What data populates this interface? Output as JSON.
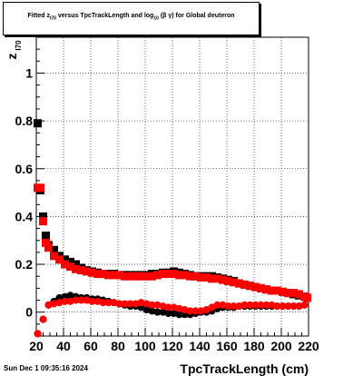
{
  "title": {
    "prefix": "Fitted ",
    "z": "z",
    "z_sub": "I70",
    "middle": " versus TpcTrackLength and log",
    "log_sub": "10",
    "suffix": "(β γ) for Global deuteron"
  },
  "timestamp": "Sun Dec  1 09:35:16 2024",
  "chart_data": {
    "type": "scatter",
    "title": "Fitted zI70 versus TpcTrackLength and log10(β γ) for Global deuteron",
    "xlabel": "TpcTrackLength (cm)",
    "ylabel": "z",
    "ylabel_sub": "I70",
    "xlim": [
      20,
      220
    ],
    "ylim": [
      -0.1,
      1.15
    ],
    "xticks": [
      20,
      40,
      60,
      80,
      100,
      120,
      140,
      160,
      180,
      200,
      220
    ],
    "xtick_labels": [
      "20",
      "40",
      "60",
      "80",
      "100",
      "120",
      "140",
      "160",
      "180",
      "200",
      "220"
    ],
    "yticks": [
      0,
      0.2,
      0.4,
      0.6,
      0.8,
      1
    ],
    "ytick_labels": [
      "0",
      "0.2",
      "0.4",
      "0.6",
      "0.8",
      "1"
    ],
    "grid": true,
    "series": [
      {
        "color": "#000000",
        "marker": "square",
        "x": [
          21,
          23,
          25,
          27,
          29,
          33,
          37,
          41,
          45,
          49,
          53,
          57,
          61,
          65,
          69,
          73,
          77,
          81,
          85,
          89,
          93,
          97,
          101,
          105,
          109,
          113,
          117,
          121,
          125,
          129,
          133,
          137,
          141,
          145,
          149,
          153,
          157,
          161,
          165,
          169,
          173,
          177,
          181,
          185,
          189,
          193,
          197,
          201,
          205,
          209,
          213,
          217,
          219
        ],
        "y": [
          0.79,
          0.51,
          0.4,
          0.32,
          0.28,
          0.26,
          0.235,
          0.22,
          0.21,
          0.2,
          0.185,
          0.175,
          0.17,
          0.165,
          0.16,
          0.16,
          0.16,
          0.155,
          0.155,
          0.155,
          0.155,
          0.155,
          0.155,
          0.16,
          0.16,
          0.165,
          0.165,
          0.17,
          0.165,
          0.16,
          0.155,
          0.15,
          0.15,
          0.15,
          0.15,
          0.145,
          0.14,
          0.135,
          0.13,
          0.12,
          0.115,
          0.11,
          0.105,
          0.1,
          0.095,
          0.09,
          0.09,
          0.085,
          0.08,
          0.075,
          0.07,
          0.065,
          0.06
        ]
      },
      {
        "color": "#ff0000",
        "marker": "square",
        "x": [
          21,
          23,
          25,
          27,
          29,
          33,
          37,
          41,
          45,
          49,
          53,
          57,
          61,
          65,
          69,
          73,
          77,
          81,
          85,
          89,
          93,
          97,
          101,
          105,
          109,
          113,
          117,
          121,
          125,
          129,
          133,
          137,
          141,
          145,
          149,
          153,
          157,
          161,
          165,
          169,
          173,
          177,
          181,
          185,
          189,
          193,
          197,
          201,
          205,
          209,
          213,
          217,
          219
        ],
        "y": [
          0.52,
          0.52,
          0.38,
          0.29,
          0.27,
          0.235,
          0.22,
          0.2,
          0.19,
          0.18,
          0.175,
          0.17,
          0.165,
          0.16,
          0.16,
          0.155,
          0.155,
          0.155,
          0.15,
          0.15,
          0.15,
          0.15,
          0.15,
          0.15,
          0.155,
          0.16,
          0.16,
          0.16,
          0.155,
          0.155,
          0.15,
          0.15,
          0.145,
          0.145,
          0.14,
          0.14,
          0.135,
          0.13,
          0.125,
          0.12,
          0.115,
          0.11,
          0.105,
          0.1,
          0.095,
          0.09,
          0.09,
          0.085,
          0.08,
          0.08,
          0.075,
          0.065,
          0.06
        ]
      },
      {
        "color": "#000000",
        "marker": "circle",
        "x": [
          21,
          25,
          29,
          33,
          37,
          41,
          45,
          49,
          53,
          57,
          61,
          65,
          69,
          73,
          77,
          81,
          85,
          89,
          93,
          97,
          101,
          105,
          109,
          113,
          117,
          121,
          125,
          129,
          133,
          137,
          141,
          145,
          149,
          153,
          157,
          161,
          165,
          169,
          173,
          177,
          181,
          185,
          189,
          193,
          197,
          201,
          205,
          209,
          213,
          217
        ],
        "y": [
          -0.09,
          -0.03,
          0.03,
          0.045,
          0.06,
          0.065,
          0.07,
          0.065,
          0.06,
          0.06,
          0.055,
          0.055,
          0.05,
          0.045,
          0.04,
          0.035,
          0.03,
          0.025,
          0.025,
          0.02,
          0.01,
          0.005,
          0.0,
          0.0,
          -0.005,
          -0.005,
          -0.01,
          -0.01,
          -0.01,
          -0.005,
          0.0,
          0.0,
          0.005,
          0.015,
          0.02,
          0.02,
          0.02,
          0.025,
          0.025,
          0.025,
          0.025,
          0.025,
          0.025,
          0.025,
          0.025,
          0.025,
          0.025,
          0.025,
          0.025,
          0.03
        ]
      },
      {
        "color": "#ff0000",
        "marker": "circle",
        "x": [
          21,
          25,
          29,
          33,
          37,
          41,
          45,
          49,
          53,
          57,
          61,
          65,
          69,
          73,
          77,
          81,
          85,
          89,
          93,
          97,
          101,
          105,
          109,
          113,
          117,
          121,
          125,
          129,
          133,
          137,
          141,
          145,
          149,
          153,
          157,
          161,
          165,
          169,
          173,
          177,
          181,
          185,
          189,
          193,
          197,
          201,
          205,
          209,
          213,
          217
        ],
        "y": [
          -0.09,
          -0.03,
          0.03,
          0.035,
          0.04,
          0.045,
          0.045,
          0.05,
          0.05,
          0.05,
          0.045,
          0.045,
          0.04,
          0.04,
          0.04,
          0.035,
          0.035,
          0.035,
          0.035,
          0.04,
          0.035,
          0.03,
          0.03,
          0.025,
          0.02,
          0.02,
          0.015,
          0.01,
          0.005,
          0.005,
          0.005,
          0.01,
          0.02,
          0.03,
          0.03,
          0.025,
          0.025,
          0.025,
          0.03,
          0.03,
          0.03,
          0.03,
          0.03,
          0.03,
          0.025,
          0.025,
          0.025,
          0.025,
          0.025,
          0.03
        ]
      }
    ]
  }
}
